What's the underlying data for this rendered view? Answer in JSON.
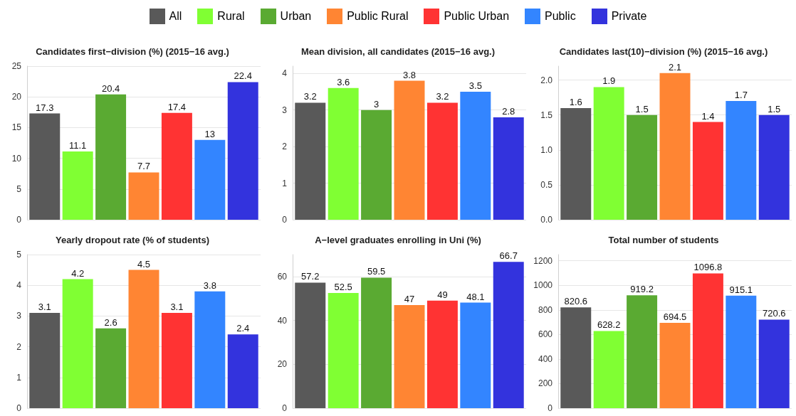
{
  "chart_data": [
    {
      "type": "bar",
      "title": "Candidates first−division (%) (2015−16 avg.)",
      "categories": [
        null
      ],
      "legend": "top",
      "grid": "y",
      "data_labels": true,
      "tick_labels": "y",
      "ylim": [
        0,
        25
      ],
      "yticks": [
        0,
        5,
        10,
        15,
        20,
        25
      ],
      "series": [
        {
          "name": "All",
          "color": "#595959",
          "values": [
            17.3
          ]
        },
        {
          "name": "Rural",
          "color": "#80ff33",
          "values": [
            11.1
          ]
        },
        {
          "name": "Urban",
          "color": "#5aaa32",
          "values": [
            20.4
          ]
        },
        {
          "name": "Public Rural",
          "color": "#ff8533",
          "values": [
            7.7
          ]
        },
        {
          "name": "Public Urban",
          "color": "#ff3333",
          "values": [
            17.4
          ]
        },
        {
          "name": "Public",
          "color": "#3385ff",
          "values": [
            13
          ]
        },
        {
          "name": "Private",
          "color": "#3333dd",
          "values": [
            22.4
          ]
        }
      ]
    },
    {
      "type": "bar",
      "title": "Mean division, all candidates (2015−16 avg.)",
      "categories": [
        null
      ],
      "grid": "y",
      "data_labels": true,
      "tick_labels": "y",
      "ylim": [
        0,
        4.2
      ],
      "yticks": [
        0,
        1,
        2,
        3,
        4
      ],
      "series": [
        {
          "color": "#595959",
          "values": [
            3.2
          ]
        },
        {
          "color": "#80ff33",
          "values": [
            3.6
          ]
        },
        {
          "color": "#5aaa32",
          "values": [
            3
          ]
        },
        {
          "color": "#ff8533",
          "values": [
            3.8
          ]
        },
        {
          "color": "#ff3333",
          "values": [
            3.2
          ]
        },
        {
          "color": "#3385ff",
          "values": [
            3.5
          ]
        },
        {
          "color": "#3333dd",
          "values": [
            2.8
          ]
        }
      ]
    },
    {
      "type": "bar",
      "title": "Candidates last(10)−division (%) (2015−16 avg.)",
      "categories": [
        null
      ],
      "grid": "y",
      "data_labels": true,
      "tick_labels": "y",
      "ylim": [
        0,
        2.2
      ],
      "yticks": [
        {
          "value": 0,
          "label": "0.0"
        },
        {
          "value": 0.5,
          "label": "0.5"
        },
        {
          "value": 1,
          "label": "1.0"
        },
        {
          "value": 1.5,
          "label": "1.5"
        },
        {
          "value": 2,
          "label": "2.0"
        }
      ],
      "series": [
        {
          "color": "#595959",
          "values": [
            1.6
          ]
        },
        {
          "color": "#80ff33",
          "values": [
            1.9
          ]
        },
        {
          "color": "#5aaa32",
          "values": [
            1.5
          ]
        },
        {
          "color": "#ff8533",
          "values": [
            2.1
          ]
        },
        {
          "color": "#ff3333",
          "values": [
            1.4
          ]
        },
        {
          "color": "#3385ff",
          "values": [
            1.7
          ]
        },
        {
          "color": "#3333dd",
          "values": [
            1.5
          ]
        }
      ]
    },
    {
      "type": "bar",
      "title": "Yearly dropout rate (% of students)",
      "categories": [
        null
      ],
      "grid": "y",
      "data_labels": true,
      "tick_labels": "y",
      "ylim": [
        0,
        5
      ],
      "yticks": [
        0,
        1,
        2,
        3,
        4,
        5
      ],
      "series": [
        {
          "color": "#595959",
          "values": [
            3.1
          ]
        },
        {
          "color": "#80ff33",
          "values": [
            4.2
          ]
        },
        {
          "color": "#5aaa32",
          "values": [
            2.6
          ]
        },
        {
          "color": "#ff8533",
          "values": [
            4.5
          ]
        },
        {
          "color": "#ff3333",
          "values": [
            3.1
          ]
        },
        {
          "color": "#3385ff",
          "values": [
            3.8
          ]
        },
        {
          "color": "#3333dd",
          "values": [
            2.4
          ]
        }
      ]
    },
    {
      "type": "bar",
      "title": "A−level graduates enrolling in Uni (%)",
      "categories": [
        null
      ],
      "grid": "y",
      "data_labels": true,
      "tick_labels": "y",
      "ylim": [
        0,
        70
      ],
      "yticks": [
        0,
        20,
        40,
        60
      ],
      "series": [
        {
          "color": "#595959",
          "values": [
            57.2
          ]
        },
        {
          "color": "#80ff33",
          "values": [
            52.5
          ]
        },
        {
          "color": "#5aaa32",
          "values": [
            59.5
          ]
        },
        {
          "color": "#ff8533",
          "values": [
            47
          ]
        },
        {
          "color": "#ff3333",
          "values": [
            49
          ]
        },
        {
          "color": "#3385ff",
          "values": [
            48.1
          ]
        },
        {
          "color": "#3333dd",
          "values": [
            66.7
          ]
        }
      ]
    },
    {
      "type": "bar",
      "title": "Total number of students",
      "categories": [
        null
      ],
      "grid": "y",
      "data_labels": true,
      "tick_labels": "y",
      "ylim": [
        0,
        1250
      ],
      "yticks": [
        0,
        200,
        400,
        600,
        800,
        1000,
        1200
      ],
      "series": [
        {
          "color": "#595959",
          "values": [
            820.6
          ]
        },
        {
          "color": "#80ff33",
          "values": [
            628.2
          ]
        },
        {
          "color": "#5aaa32",
          "values": [
            919.2
          ]
        },
        {
          "color": "#ff8533",
          "values": [
            694.5
          ]
        },
        {
          "color": "#ff3333",
          "values": [
            1096.8
          ]
        },
        {
          "color": "#3385ff",
          "values": [
            915.1
          ]
        },
        {
          "color": "#3333dd",
          "values": [
            720.6
          ]
        }
      ]
    }
  ]
}
